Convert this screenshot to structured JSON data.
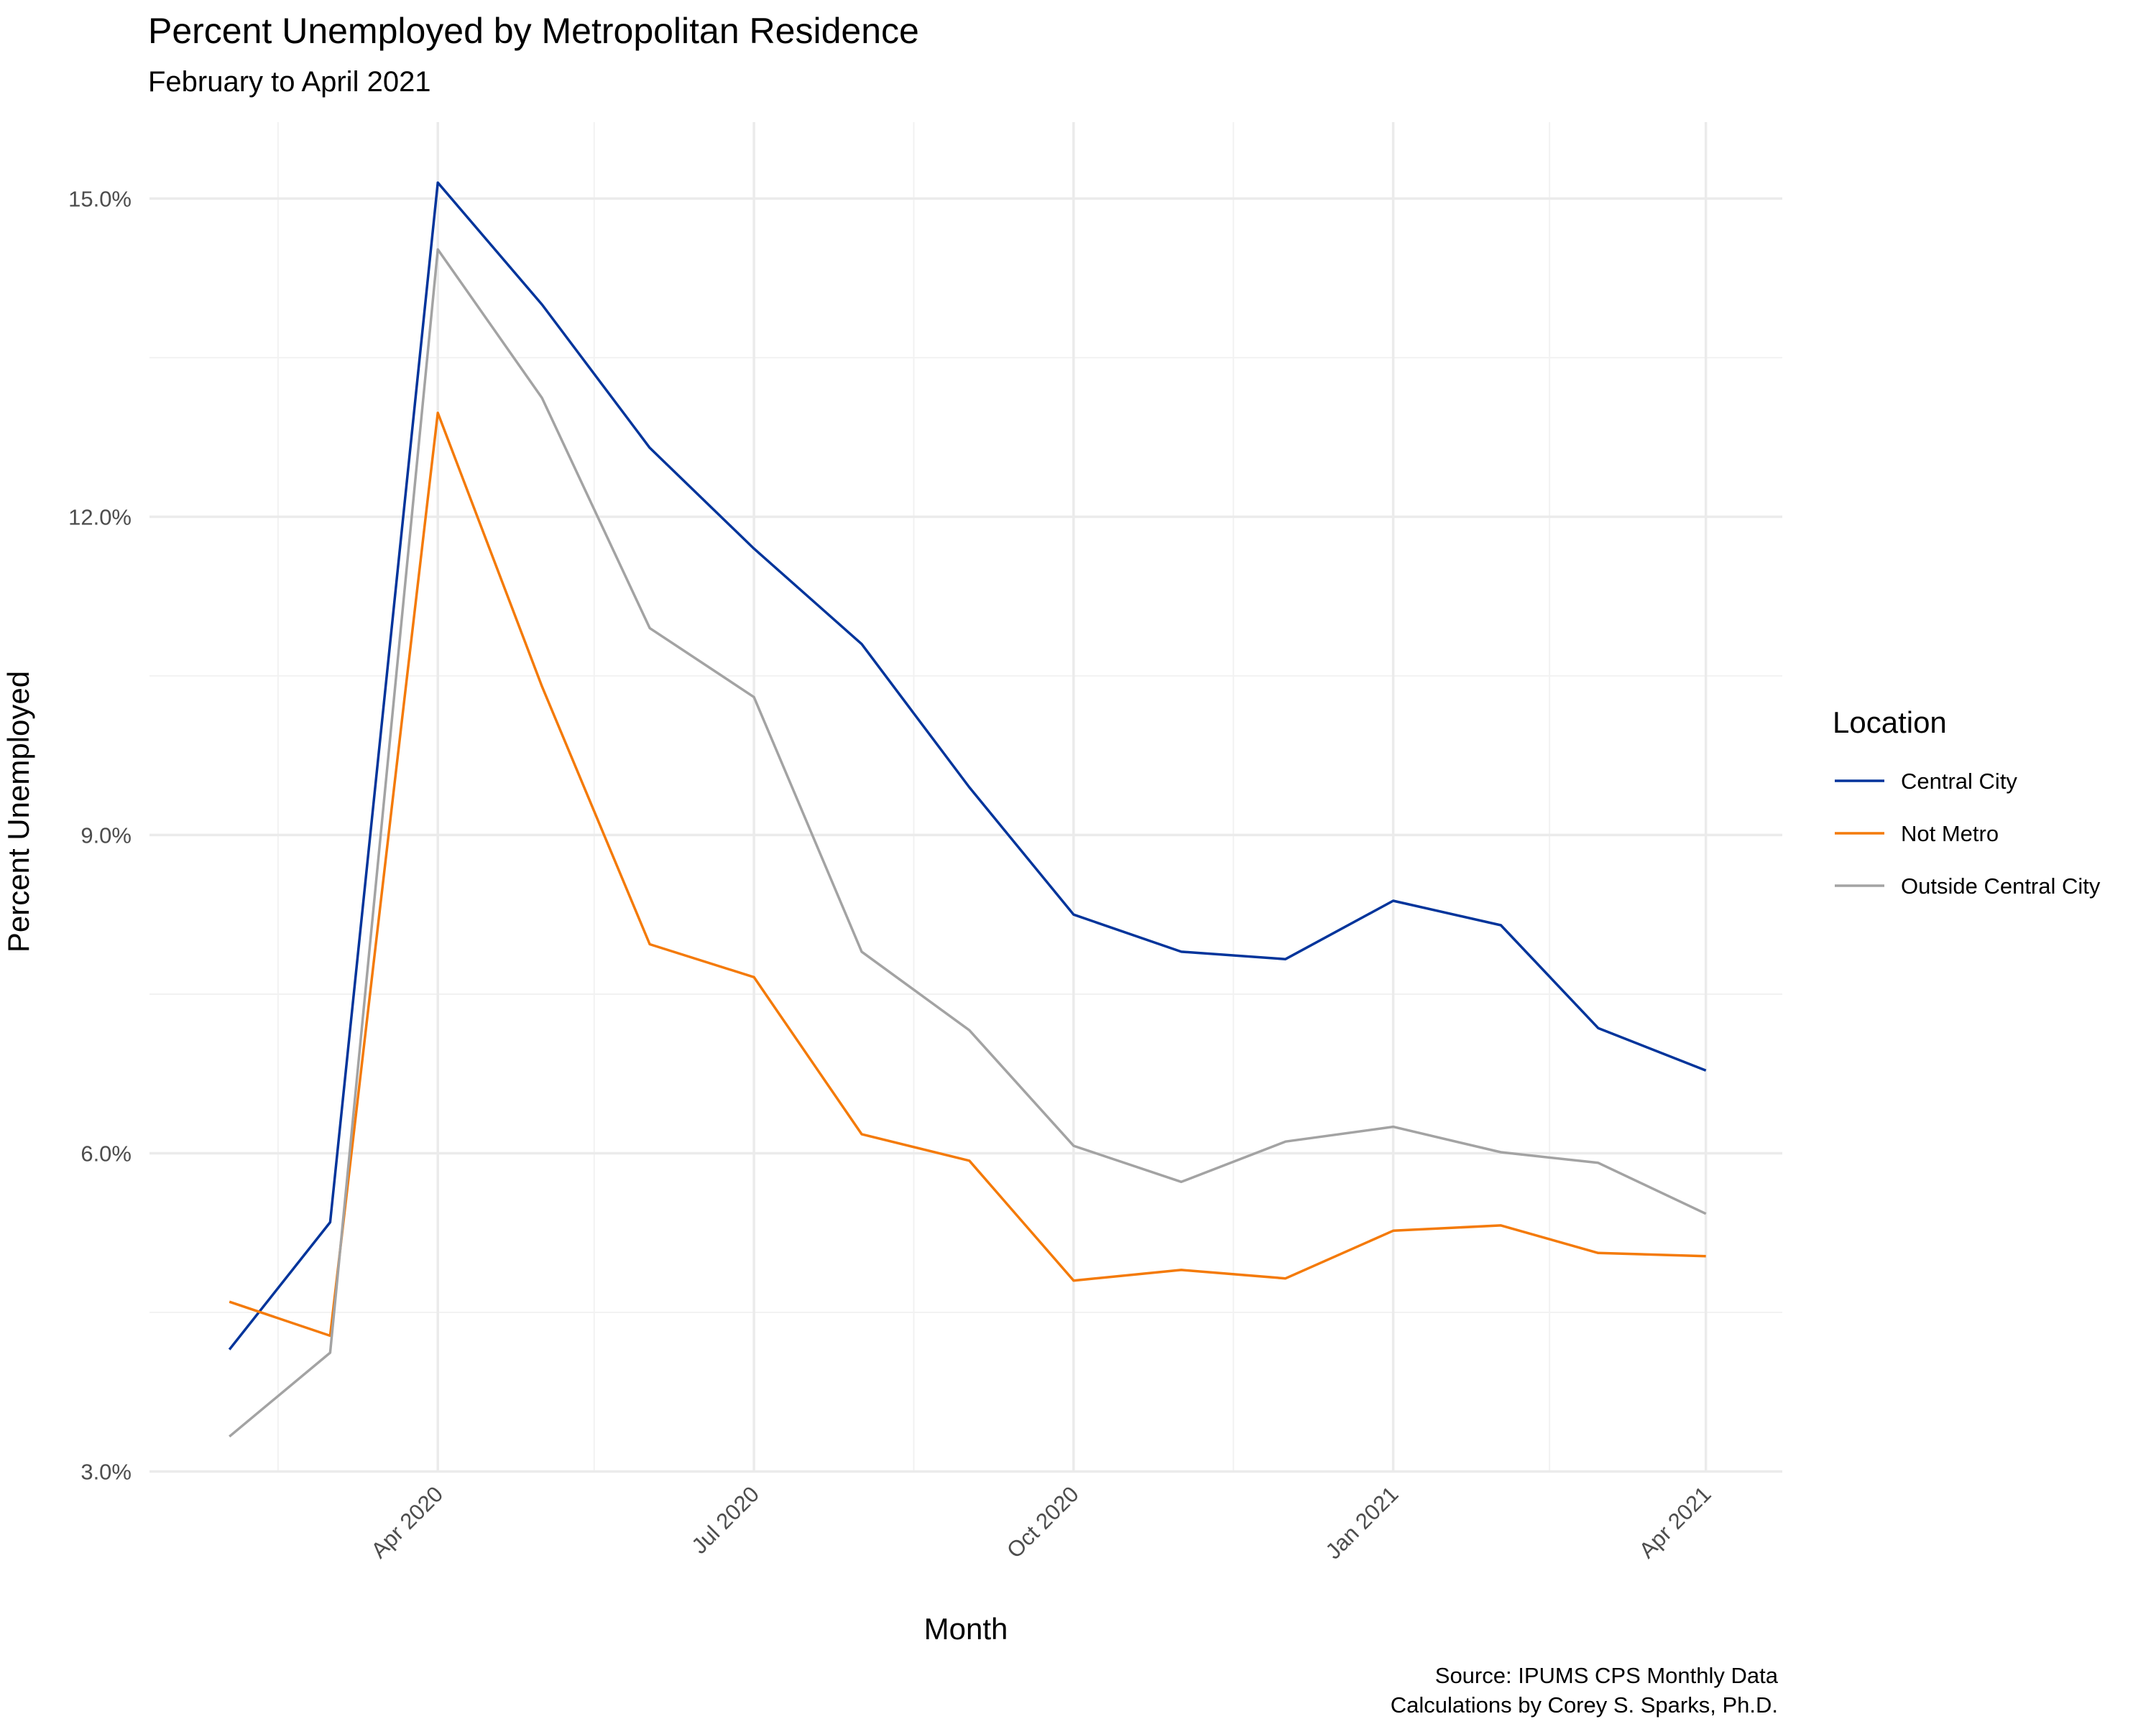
{
  "chart_data": {
    "type": "line",
    "title": "Percent Unemployed by Metropolitan Residence",
    "subtitle": "February to April 2021",
    "xlabel": "Month",
    "ylabel": "Percent Unemployed",
    "caption": [
      "Source: IPUMS CPS Monthly Data",
      "Calculations by Corey S. Sparks, Ph.D."
    ],
    "legend_title": "Location",
    "legend_position": "right",
    "grid": true,
    "x": [
      "2020-02",
      "2020-03",
      "2020-04",
      "2020-05",
      "2020-06",
      "2020-07",
      "2020-08",
      "2020-09",
      "2020-10",
      "2020-11",
      "2020-12",
      "2021-01",
      "2021-02",
      "2021-03",
      "2021-04"
    ],
    "x_ticks": [
      {
        "value": "2020-04",
        "label": "Apr 2020"
      },
      {
        "value": "2020-07",
        "label": "Jul 2020"
      },
      {
        "value": "2020-10",
        "label": "Oct 2020"
      },
      {
        "value": "2021-01",
        "label": "Jan 2021"
      },
      {
        "value": "2021-04",
        "label": "Apr 2021"
      }
    ],
    "x_minor_ticks": [
      "2020-02-15",
      "2020-05-16",
      "2020-08-16",
      "2020-11-16",
      "2021-02-15"
    ],
    "x_range": [
      "2020-01-09",
      "2021-04-23"
    ],
    "ylim": [
      2.99,
      15.72
    ],
    "y_ticks": [
      {
        "value": 3.0,
        "label": "3.0%"
      },
      {
        "value": 6.0,
        "label": "6.0%"
      },
      {
        "value": 9.0,
        "label": "9.0%"
      },
      {
        "value": 12.0,
        "label": "12.0%"
      },
      {
        "value": 15.0,
        "label": "15.0%"
      }
    ],
    "y_minor_ticks": [
      4.5,
      7.5,
      10.5,
      13.5
    ],
    "series": [
      {
        "name": "Central City",
        "color": "#00349b",
        "values": [
          4.15,
          5.35,
          15.15,
          14.0,
          12.65,
          11.7,
          10.8,
          9.45,
          8.25,
          7.9,
          7.83,
          8.38,
          8.15,
          7.18,
          6.78
        ]
      },
      {
        "name": "Not Metro",
        "color": "#f47a08",
        "values": [
          4.6,
          4.28,
          12.98,
          10.4,
          7.97,
          7.66,
          6.18,
          5.93,
          4.8,
          4.9,
          4.82,
          5.27,
          5.32,
          5.06,
          5.03
        ]
      },
      {
        "name": "Outside Central City",
        "color": "#a3a3a3",
        "values": [
          3.33,
          4.12,
          14.52,
          13.12,
          10.95,
          10.3,
          7.9,
          7.16,
          6.07,
          5.73,
          6.11,
          6.25,
          6.01,
          5.91,
          5.43
        ]
      }
    ]
  }
}
